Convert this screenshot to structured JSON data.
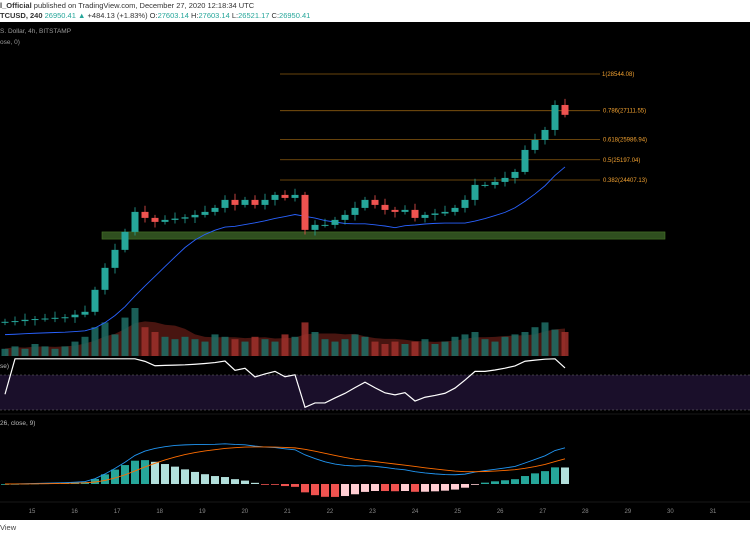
{
  "header": {
    "line1_user": "l_Official",
    "line1_rest": " published on TradingView.com, December 27, 2020 12:18:34 UTC",
    "symbol": "TCUSD, 240",
    "price": "26950.41",
    "change": "+484.13 (+1.83%)",
    "o_label": "O:",
    "o": "27603.14",
    "h_label": "H:",
    "h": "27603.14",
    "l_label": "L:",
    "l": "26521.17",
    "c_label": "C:",
    "c": "26950.41"
  },
  "legend": {
    "series": "S. Dollar, 4h, BITSTAMP",
    "ma": "ose, 0)",
    "rsi": "se)",
    "macd": "26, close, 9)"
  },
  "footer": {
    "text": "View"
  },
  "colors": {
    "up": "#26a69a",
    "down": "#ef5350",
    "fib": "#f0a030",
    "ma": "#2962ff",
    "zone": "#2f4f1f",
    "rsi_band": "#1a0f2a"
  },
  "chart_data": {
    "type": "candlestick",
    "title": "BTCUSD, 4h, BITSTAMP",
    "x_ticks": [
      "15",
      "16",
      "17",
      "18",
      "19",
      "20",
      "21",
      "22",
      "23",
      "24",
      "25",
      "26",
      "27",
      "28",
      "29",
      "30",
      "31"
    ],
    "fib_levels": [
      {
        "label": "1(28544.08)",
        "value": 28544.08
      },
      {
        "label": "0.786(27111.55)",
        "value": 27111.55
      },
      {
        "label": "0.618(25986.94)",
        "value": 25986.94
      },
      {
        "label": "0.5(25197.04)",
        "value": 25197.04
      },
      {
        "label": "0.382(24407.13)",
        "value": 24407.13
      }
    ],
    "support_zone": [
      22100,
      22380
    ],
    "closes": [
      18872,
      18900,
      18950,
      18980,
      19000,
      19028,
      19050,
      19150,
      19262,
      20120,
      20978,
      21680,
      22382,
      23162,
      22928,
      22772,
      22850,
      22900,
      22950,
      23045,
      23162,
      23318,
      23630,
      23435,
      23630,
      23435,
      23630,
      23825,
      23708,
      23825,
      22460,
      22655,
      22655,
      22850,
      23045,
      23318,
      23630,
      23435,
      23240,
      23162,
      23240,
      22928,
      23045,
      23100,
      23162,
      23318,
      23630,
      24215,
      24215,
      24332,
      24488,
      24722,
      25580,
      25970,
      26360,
      27335,
      26950
    ],
    "volume": [
      3,
      4,
      3,
      5,
      4,
      3,
      4,
      6,
      8,
      12,
      14,
      9,
      16,
      20,
      12,
      10,
      8,
      7,
      8,
      7,
      6,
      9,
      8,
      7,
      6,
      8,
      7,
      6,
      9,
      8,
      14,
      10,
      7,
      6,
      7,
      9,
      8,
      6,
      5,
      6,
      5,
      6,
      7,
      5,
      6,
      8,
      9,
      10,
      7,
      6,
      8,
      9,
      10,
      12,
      14,
      11,
      10
    ]
  }
}
